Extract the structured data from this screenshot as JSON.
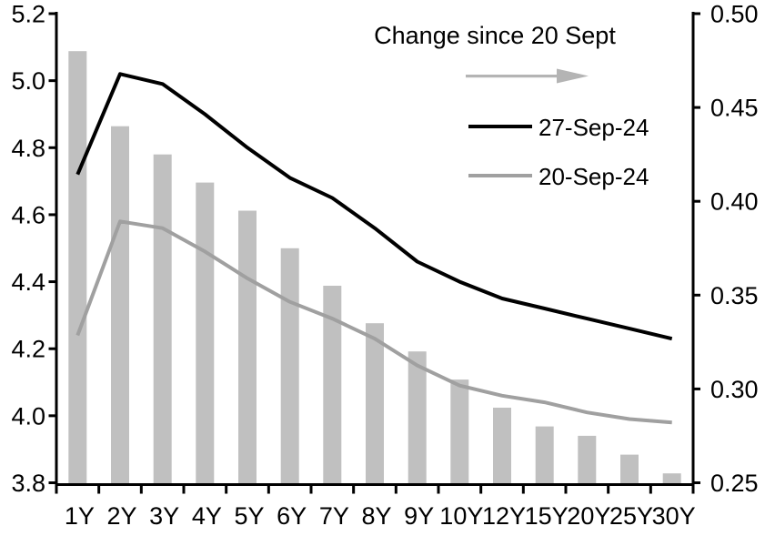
{
  "chart_data": {
    "type": "combo",
    "categories": [
      "1Y",
      "2Y",
      "3Y",
      "4Y",
      "5Y",
      "6Y",
      "7Y",
      "8Y",
      "9Y",
      "10Y",
      "12Y",
      "15Y",
      "20Y",
      "25Y",
      "30Y"
    ],
    "series": [
      {
        "name": "Change since 20 Sept",
        "type": "bar",
        "axis": "right",
        "color": "#c0c0c0",
        "values": [
          0.48,
          0.44,
          0.425,
          0.41,
          0.395,
          0.375,
          0.355,
          0.335,
          0.32,
          0.305,
          0.29,
          0.28,
          0.275,
          0.265,
          0.255
        ]
      },
      {
        "name": "27-Sep-24",
        "type": "line",
        "axis": "left",
        "color": "#000000",
        "values": [
          4.72,
          5.02,
          4.99,
          4.9,
          4.8,
          4.71,
          4.65,
          4.56,
          4.46,
          4.4,
          4.35,
          4.32,
          4.29,
          4.26,
          4.23
        ]
      },
      {
        "name": "20-Sep-24",
        "type": "line",
        "axis": "left",
        "color": "#a0a0a0",
        "values": [
          4.24,
          4.58,
          4.56,
          4.49,
          4.41,
          4.34,
          4.29,
          4.23,
          4.15,
          4.09,
          4.06,
          4.04,
          4.01,
          3.99,
          3.98
        ]
      }
    ],
    "left_axis": {
      "min": 3.8,
      "max": 5.2,
      "step": 0.2,
      "tick_labels": [
        "5.2",
        "5.0",
        "4.8",
        "4.6",
        "4.4",
        "4.2",
        "4.0",
        "3.8"
      ]
    },
    "right_axis": {
      "min": 0.25,
      "max": 0.5,
      "step": 0.05,
      "tick_labels": [
        "0.50",
        "0.45",
        "0.40",
        "0.35",
        "0.30",
        "0.25"
      ]
    },
    "legend": {
      "title": "Change since 20 Sept",
      "arrow_color": "#b4b4b4",
      "entries": [
        {
          "label": "27-Sep-24",
          "color": "#000000"
        },
        {
          "label": "20-Sep-24",
          "color": "#a0a0a0"
        }
      ]
    },
    "grid": false
  }
}
